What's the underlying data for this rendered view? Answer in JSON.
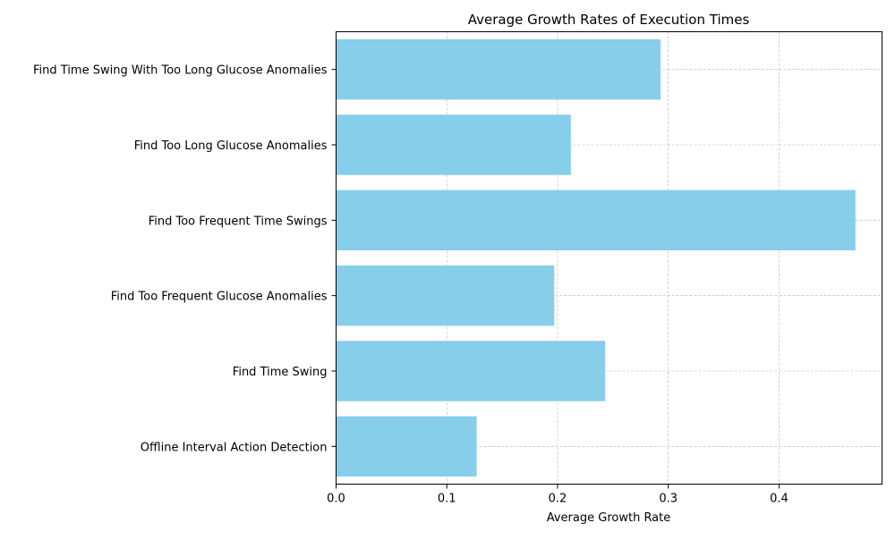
{
  "chart_data": {
    "type": "bar",
    "orientation": "horizontal",
    "title": "Average Growth Rates of Execution Times",
    "xlabel": "Average Growth Rate",
    "ylabel": "",
    "categories": [
      "Offline Interval Action Detection",
      "Find Time Swing",
      "Find Too Frequent Glucose Anomalies",
      "Find Too Frequent Time Swings",
      "Find Too Long Glucose Anomalies",
      "Find Time Swing With Too Long Glucose Anomalies"
    ],
    "values": [
      0.127,
      0.243,
      0.197,
      0.469,
      0.212,
      0.293
    ],
    "xlim": [
      0,
      0.493
    ],
    "xticks": [
      0.0,
      0.1,
      0.2,
      0.3,
      0.4
    ],
    "xtick_labels": [
      "0.0",
      "0.1",
      "0.2",
      "0.3",
      "0.4"
    ],
    "grid": true,
    "bar_color": "#87ceeb",
    "grid_color": "#b0b0b0"
  }
}
